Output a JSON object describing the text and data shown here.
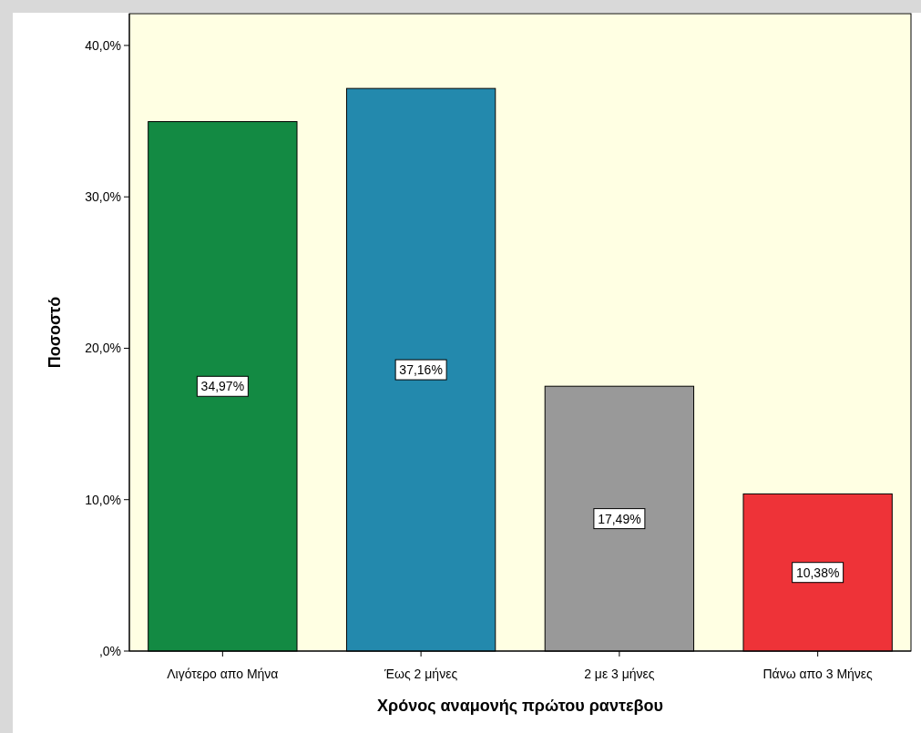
{
  "chart_data": {
    "type": "bar",
    "xlabel": "Χρόνος αναμονής πρώτου ραντεβου",
    "ylabel": "Ποσοστό",
    "categories": [
      "Λιγότερο απο Μήνα",
      "Έως 2 μήνες",
      "2 με 3 μήνες",
      "Πάνω απο 3 Μήνες"
    ],
    "values": [
      34.97,
      37.16,
      17.49,
      10.38
    ],
    "colors": [
      "#138a43",
      "#2389ad",
      "#999999",
      "#ee3338"
    ],
    "value_labels": [
      "34,97%",
      "37,16%",
      "17,49%",
      "10,38%"
    ],
    "ylim": [
      0,
      42.1
    ],
    "yticks": [
      {
        "value": 0,
        "label": ",0%"
      },
      {
        "value": 10,
        "label": "10,0%"
      },
      {
        "value": 20,
        "label": "20,0%"
      },
      {
        "value": 30,
        "label": "30,0%"
      },
      {
        "value": 40,
        "label": "40,0%"
      }
    ],
    "grid": false
  }
}
